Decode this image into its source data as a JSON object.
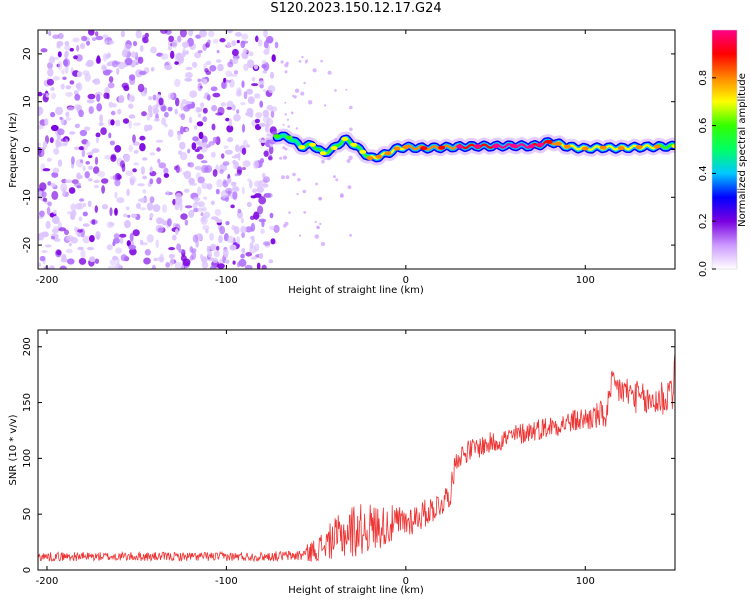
{
  "title": "S120.2023.150.12.17.G24",
  "chart_data": [
    {
      "type": "heatmap",
      "xlabel": "Height of straight line (km)",
      "ylabel": "Frequency (Hz)",
      "xlim": [
        -205,
        150
      ],
      "ylim": [
        -25,
        25
      ],
      "xticks": [
        -200,
        -100,
        0,
        100
      ],
      "yticks": [
        -20,
        -10,
        0,
        10,
        20
      ],
      "colorbar": {
        "label": "Normalized spectral amplitude",
        "range": [
          0,
          1
        ],
        "ticks": [
          "0.0",
          "0.2",
          "0.4",
          "0.6",
          "0.8"
        ],
        "colors": [
          "#ffffff",
          "#cc99ff",
          "#7a00e0",
          "#0000ff",
          "#00c8ff",
          "#00ff66",
          "#33ff00",
          "#ffff00",
          "#ff8800",
          "#ff0000",
          "#ff0088"
        ]
      },
      "noise_region_x": [
        -205,
        -72
      ],
      "ridge": {
        "x": [
          -72,
          -65,
          -58,
          -52,
          -46,
          -40,
          -34,
          -29,
          -24,
          -20,
          -15,
          -10,
          -5,
          0,
          10,
          20,
          30,
          40,
          50,
          60,
          70,
          75,
          80,
          85,
          90,
          100,
          110,
          120,
          130,
          140,
          150
        ],
        "freq": [
          2.8,
          2.5,
          0.5,
          1.0,
          -0.8,
          0.3,
          2.2,
          1.0,
          -0.5,
          -1.8,
          -1.5,
          -0.8,
          0.2,
          0.5,
          0.3,
          0.4,
          0.6,
          0.7,
          0.7,
          0.8,
          0.7,
          1.0,
          1.6,
          1.2,
          0.6,
          0.2,
          0.4,
          0.3,
          0.5,
          0.6,
          0.7
        ],
        "amplitude": [
          0.45,
          0.45,
          0.5,
          0.55,
          0.5,
          0.5,
          0.55,
          0.5,
          0.55,
          0.6,
          0.6,
          0.6,
          0.65,
          0.7,
          0.72,
          0.75,
          0.8,
          0.85,
          0.9,
          0.95,
          0.92,
          0.85,
          0.75,
          0.7,
          0.65,
          0.6,
          0.6,
          0.6,
          0.62,
          0.6,
          0.58
        ]
      }
    },
    {
      "type": "line",
      "xlabel": "Height of straight line (km)",
      "ylabel": "SNR (10 * v/v)",
      "xlim": [
        -205,
        150
      ],
      "ylim": [
        0,
        215
      ],
      "xticks": [
        -200,
        -100,
        0,
        100
      ],
      "yticks": [
        0,
        50,
        100,
        150,
        200
      ],
      "series": [
        {
          "color": "#ee3333",
          "trend_x": [
            -205,
            -180,
            -150,
            -120,
            -100,
            -80,
            -60,
            -55,
            -48,
            -40,
            -30,
            -20,
            -10,
            0,
            10,
            20,
            25,
            28,
            35,
            50,
            70,
            90,
            105,
            112,
            115,
            125,
            135,
            145,
            150
          ],
          "trend_y": [
            12,
            12,
            12,
            12,
            12,
            12,
            13,
            15,
            20,
            28,
            35,
            38,
            40,
            43,
            50,
            60,
            70,
            100,
            107,
            115,
            125,
            132,
            137,
            140,
            165,
            158,
            150,
            155,
            170
          ],
          "noise_amp": [
            4,
            4,
            4,
            4,
            4,
            4,
            5,
            8,
            12,
            18,
            25,
            22,
            18,
            15,
            13,
            12,
            12,
            10,
            10,
            10,
            10,
            10,
            12,
            15,
            15,
            15,
            15,
            20,
            25
          ]
        }
      ]
    }
  ]
}
